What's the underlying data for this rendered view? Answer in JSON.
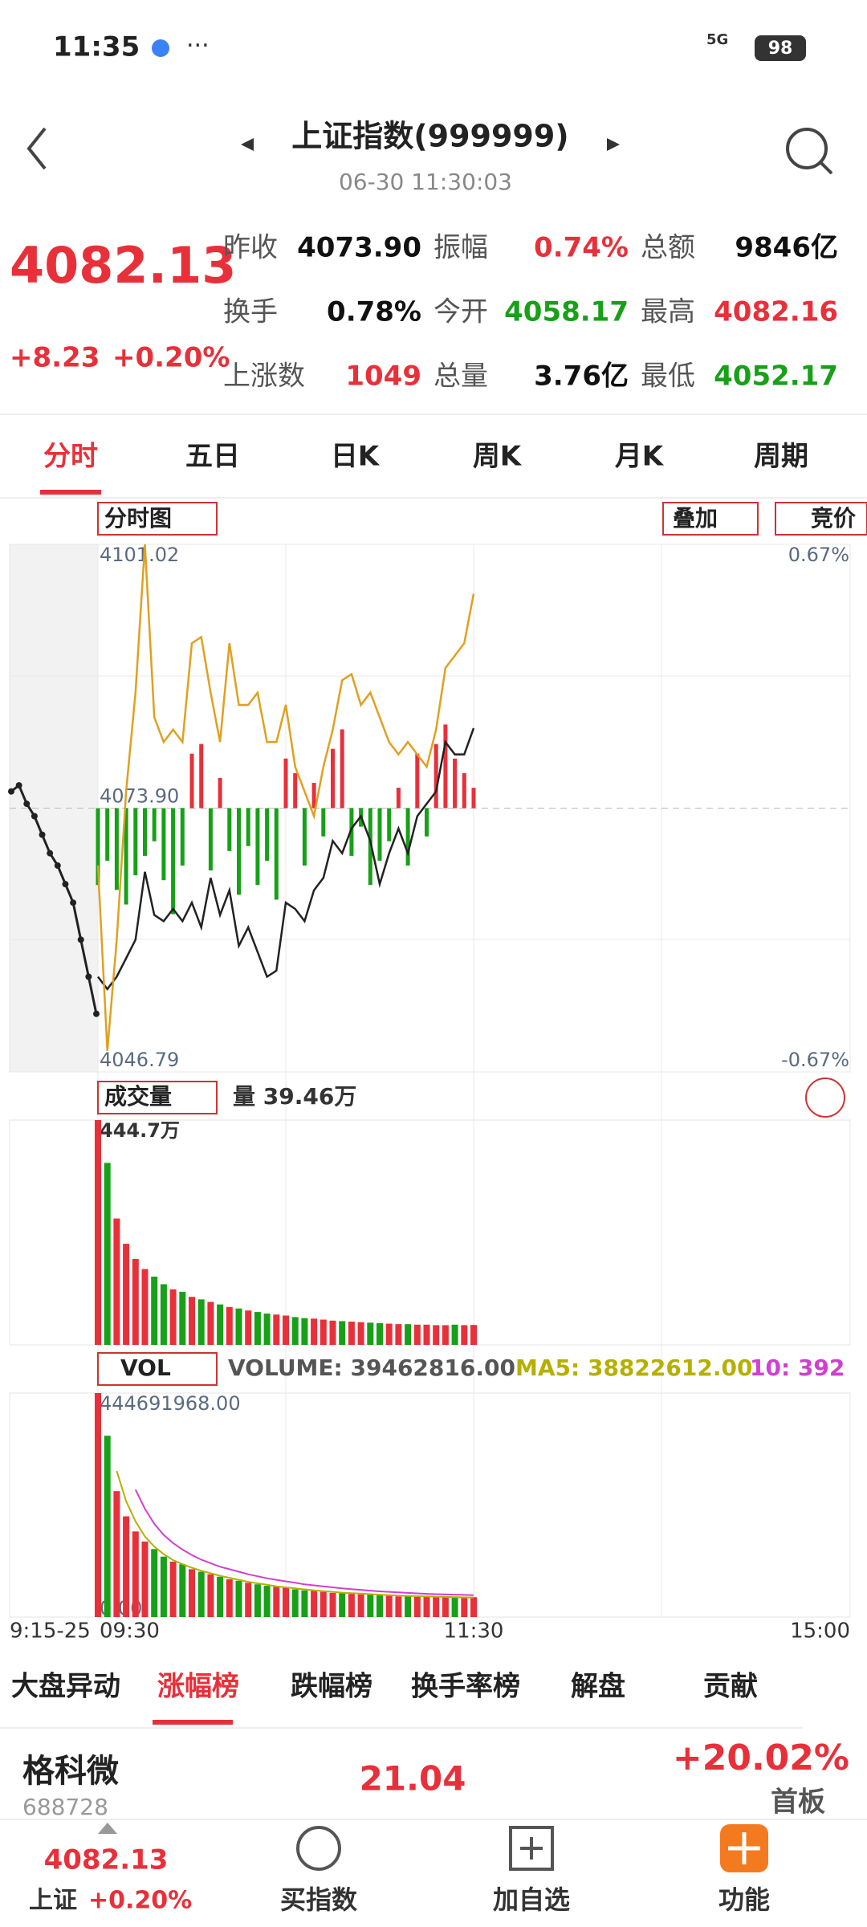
{
  "status_bar": {
    "time": "11:35",
    "network": "5G",
    "battery": "98"
  },
  "header": {
    "title": "上证指数(999999)",
    "datetime": "06-30 11:30:03"
  },
  "quote": {
    "price": "4082.13",
    "change": "+8.23",
    "change_pct": "+0.20%",
    "color": "#e8303a",
    "fields": [
      {
        "label": "昨收",
        "value": "4073.90",
        "color": "#111"
      },
      {
        "label": "振幅",
        "value": "0.74%",
        "color": "#e8303a"
      },
      {
        "label": "总额",
        "value": "9846亿",
        "color": "#111"
      },
      {
        "label": "换手",
        "value": "0.78%",
        "color": "#111"
      },
      {
        "label": "今开",
        "value": "4058.17",
        "color": "#18a018"
      },
      {
        "label": "最高",
        "value": "4082.16",
        "color": "#e8303a"
      },
      {
        "label": "上涨数",
        "value": "1049",
        "color": "#e8303a"
      },
      {
        "label": "总量",
        "value": "3.76亿",
        "color": "#111"
      },
      {
        "label": "最低",
        "value": "4052.17",
        "color": "#18a018"
      }
    ]
  },
  "tabs": [
    "分时",
    "五日",
    "日K",
    "周K",
    "月K",
    "周期"
  ],
  "intraday": {
    "type": "line",
    "selector": "分时图",
    "overlay": "叠加",
    "auction_button": "竞价",
    "ylim": [
      4046.79,
      4101.02
    ],
    "yticks": [
      4101.02,
      {
        "value": 4073.9,
        "label": "4073.90"
      },
      4046.79
    ],
    "y2lim": [
      -0.67,
      0.67
    ],
    "y2ticks": [
      {
        "value": 0.67,
        "label": "0.67%"
      },
      {
        "value": -0.67,
        "label": "-0.67%"
      }
    ],
    "auction_values": [
      4075.62,
      4076.25,
      4074.35,
      4073.08,
      4071.17,
      4069.27,
      4068.0,
      4066.09,
      4064.19,
      4060.38,
      4056.57,
      4052.76
    ],
    "series": [
      {
        "color": "#222222",
        "values": [
          4056.57,
          4055.3,
          4056.57,
          4058.47,
          4060.38,
          4067.36,
          4062.92,
          4062.28,
          4063.55,
          4062.28,
          4064.19,
          4061.65,
          4066.73,
          4062.92,
          4065.46,
          4059.74,
          4061.65,
          4059.11,
          4056.57,
          4057.2,
          4064.19,
          4063.55,
          4062.28,
          4065.46,
          4066.73,
          4070.54,
          4069.27,
          4071.81,
          4073.08,
          4070.54,
          4066.09,
          4069.27,
          4071.81,
          4069.27,
          4073.08,
          4074.35,
          4075.62,
          4080.7,
          4079.43,
          4079.43,
          4082.13
        ]
      },
      {
        "color": "#e0a020",
        "values": [
          4068.0,
          4048.95,
          4060.38,
          4075.62,
          4085.78,
          4101.02,
          4083.24,
          4080.7,
          4081.97,
          4080.7,
          4090.86,
          4091.49,
          4085.78,
          4080.7,
          4090.86,
          4084.51,
          4084.51,
          4085.78,
          4080.7,
          4080.7,
          4084.51,
          4078.16,
          4075.62,
          4073.08,
          4078.16,
          4081.97,
          4087.05,
          4087.68,
          4084.51,
          4085.78,
          4083.24,
          4080.7,
          4079.43,
          4080.7,
          4079.43,
          4078.16,
          4081.97,
          4088.32,
          4089.59,
          4090.86,
          4095.94
        ]
      }
    ],
    "strength": [
      4066.0,
      4068.5,
      4065.5,
      4064.0,
      4067.0,
      4069.0,
      4070.5,
      4066.5,
      4063.0,
      4068.0,
      4079.5,
      4080.5,
      4067.5,
      4077.0,
      4069.5,
      4065.0,
      4070.0,
      4066.0,
      4068.5,
      4064.5,
      4079.0,
      4077.5,
      4068.0,
      4076.5,
      4071.0,
      4080.0,
      4082.0,
      4069.0,
      4072.0,
      4066.0,
      4068.5,
      4070.5,
      4076.0,
      4068.0,
      4079.5,
      4071.0,
      4080.5,
      4082.5,
      4079.0,
      4077.5,
      4076.0
    ],
    "x_labels": [
      "9:15-25",
      "09:30",
      "11:30",
      "15:00"
    ]
  },
  "volume": {
    "type": "bar",
    "selector": "成交量",
    "label": "量 39.46万",
    "ylim": [
      0,
      444.7
    ],
    "yticks": [
      {
        "value": 444.7,
        "label": "444.7万"
      }
    ],
    "values": [
      444.7,
      360,
      250,
      200,
      170,
      150,
      135,
      120,
      110,
      105,
      95,
      90,
      85,
      80,
      75,
      72,
      68,
      65,
      62,
      60,
      58,
      55,
      53,
      52,
      50,
      48,
      47,
      46,
      45,
      44,
      43,
      42,
      41,
      41,
      40,
      40,
      39,
      39,
      40,
      39,
      39.46
    ]
  },
  "vol": {
    "type": "bar",
    "selector": "VOL",
    "volume_label": "VOLUME: 39462816.00",
    "ma5_label": "MA5: 38822612.00",
    "ma10_label": "10: 392",
    "ylim": [
      0,
      444691968
    ],
    "yticks": [
      {
        "value": 444691968,
        "label": "444691968.00"
      },
      {
        "value": 0,
        "label": "0.00"
      }
    ],
    "values": [
      444691968,
      360000000,
      250000000,
      200000000,
      170000000,
      150000000,
      135000000,
      120000000,
      110000000,
      105000000,
      95000000,
      90000000,
      85000000,
      80000000,
      75000000,
      72000000,
      68000000,
      65000000,
      62000000,
      60000000,
      58000000,
      55000000,
      53000000,
      52000000,
      50000000,
      48000000,
      47000000,
      46000000,
      45000000,
      44000000,
      43000000,
      42000000,
      41000000,
      41000000,
      40000000,
      40000000,
      39000000,
      39000000,
      40000000,
      39000000,
      39462816
    ],
    "ma5": {
      "color": "#b5b000",
      "values": [
        null,
        null,
        290000000,
        230000000,
        190000000,
        160000000,
        140000000,
        125000000,
        113000000,
        105000000,
        98000000,
        92000000,
        87000000,
        82000000,
        78000000,
        74000000,
        70000000,
        67000000,
        64000000,
        61000000,
        59000000,
        57000000,
        55000000,
        53000000,
        51500000,
        50000000,
        48500000,
        47500000,
        46500000,
        45500000,
        44500000,
        43500000,
        42500000,
        42000000,
        41500000,
        41000000,
        40500000,
        40000000,
        39500000,
        39000000,
        38822612
      ]
    },
    "ma10": {
      "color": "#d040d0",
      "values": [
        null,
        null,
        null,
        null,
        253000000,
        215000000,
        185000000,
        163000000,
        147000000,
        134000000,
        123000000,
        114000000,
        107000000,
        100000000,
        95000000,
        90000000,
        85000000,
        81000000,
        77000000,
        74000000,
        71000000,
        68000000,
        65000000,
        63000000,
        61000000,
        59000000,
        57000000,
        55500000,
        54000000,
        52500000,
        51000000,
        50000000,
        49000000,
        48000000,
        47000000,
        46000000,
        45500000,
        45000000,
        44500000,
        44000000,
        43500000
      ]
    }
  },
  "list_tabs": [
    "大盘异动",
    "涨幅榜",
    "跌幅榜",
    "换手率榜",
    "解盘",
    "贡献"
  ],
  "stock": {
    "name": "格科微",
    "code": "688728",
    "price": "21.04",
    "change_pct": "+20.02%",
    "tag": "首板"
  },
  "bottom_nav": {
    "index_price": "4082.13",
    "index_name": "上证",
    "index_pct": "+0.20%",
    "items": [
      "买指数",
      "加自选",
      "功能"
    ]
  }
}
